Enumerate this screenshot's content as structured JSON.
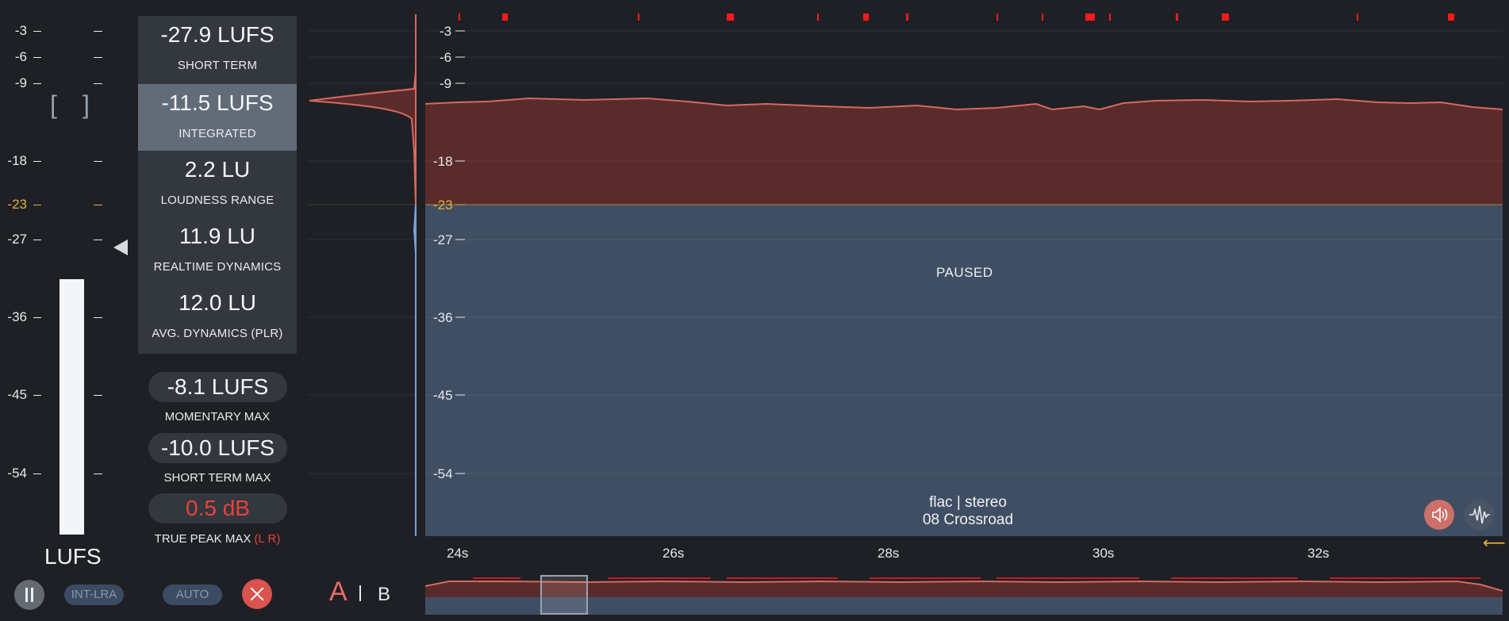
{
  "meter": {
    "scale": [
      "-3",
      "-6",
      "-9",
      "-18",
      "-23",
      "-27",
      "-36",
      "-45",
      "-54"
    ],
    "target": "-23",
    "unit": "LUFS",
    "brackets": [
      "[",
      "]"
    ]
  },
  "stats": [
    {
      "value": "-27.9 LUFS",
      "label": "SHORT TERM"
    },
    {
      "value": "-11.5 LUFS",
      "label": "INTEGRATED"
    },
    {
      "value": "2.2 LU",
      "label": "LOUDNESS RANGE"
    },
    {
      "value": "11.9 LU",
      "label": "REALTIME DYNAMICS"
    },
    {
      "value": "12.0 LU",
      "label": "AVG. DYNAMICS (PLR)"
    }
  ],
  "maxes": {
    "momentary": {
      "value": "-8.1 LUFS",
      "label": "MOMENTARY MAX"
    },
    "short_term": {
      "value": "-10.0 LUFS",
      "label": "SHORT TERM MAX"
    },
    "true_peak": {
      "value": "0.5 dB",
      "label": "TRUE PEAK MAX",
      "channels": "(L R)"
    }
  },
  "controls": {
    "int_lra": "INT-LRA",
    "auto": "AUTO",
    "ab_a": "A",
    "ab_b": "B"
  },
  "graph": {
    "scale": [
      "-3",
      "-6",
      "-9",
      "-18",
      "-23",
      "-27",
      "-36",
      "-45",
      "-54"
    ],
    "status": "PAUSED",
    "format": "flac | stereo",
    "track": "08 Crossroad",
    "time_labels": [
      "24s",
      "26s",
      "28s",
      "30s",
      "32s"
    ]
  },
  "colors": {
    "background": "#1e2025",
    "loud_fill": "#5a2b2b",
    "loud_line": "#d46a60",
    "quiet_fill": "#3f4e63",
    "target": "#e3b13c",
    "peak_marker": "#ff1a1a",
    "active_stat": "#626c79"
  },
  "icons": [
    "pause-icon",
    "close-icon",
    "speaker-icon",
    "waveform-icon",
    "back-arrow-icon",
    "left-triangle-icon"
  ]
}
